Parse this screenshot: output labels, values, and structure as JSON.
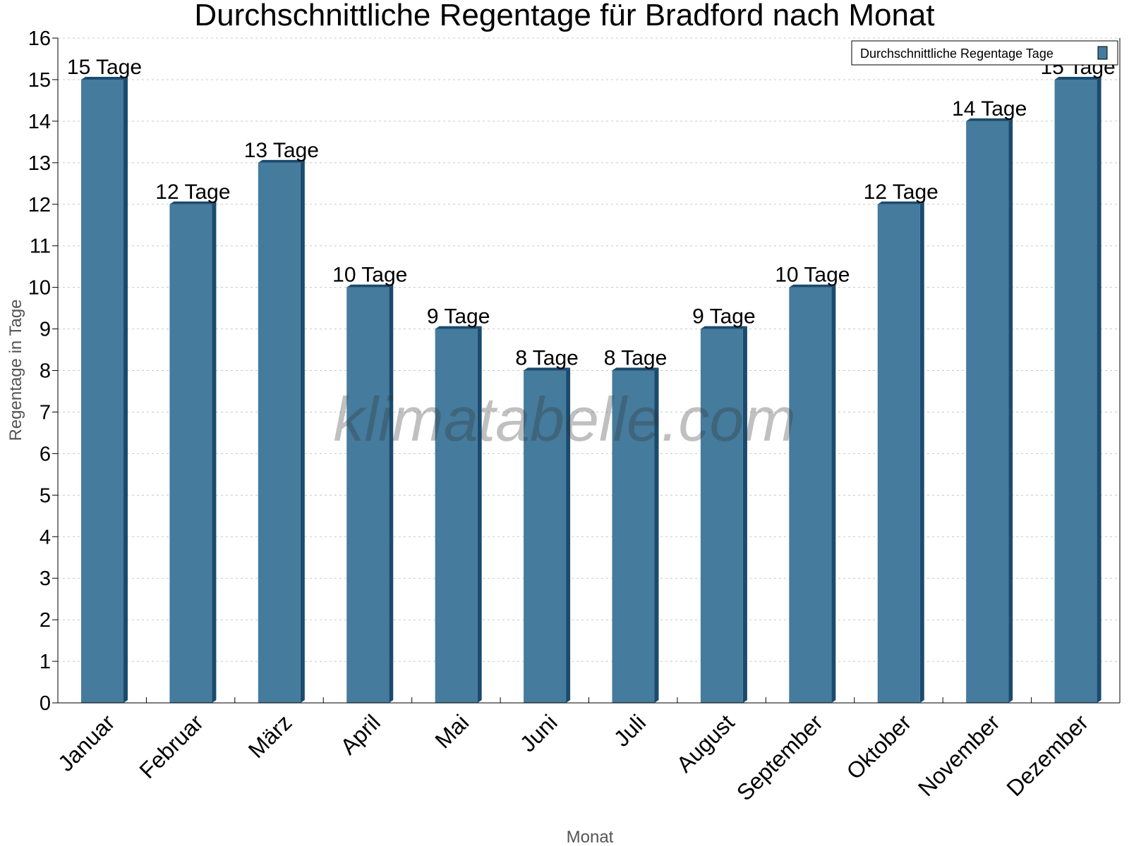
{
  "chart_data": {
    "type": "bar",
    "title": "Durchschnittliche Regentage für Bradford nach Monat",
    "xlabel": "Monat",
    "ylabel": "Regentage in Tage",
    "ylim": [
      0,
      16
    ],
    "yticks": [
      "0",
      "1",
      "2",
      "3",
      "4",
      "5",
      "6",
      "7",
      "8",
      "9",
      "10",
      "11",
      "12",
      "13",
      "14",
      "15",
      "16"
    ],
    "categories": [
      "Januar",
      "Februar",
      "März",
      "April",
      "Mai",
      "Juni",
      "Juli",
      "August",
      "September",
      "Oktober",
      "November",
      "Dezember"
    ],
    "series": [
      {
        "name": "Durchschnittliche Regentage Tage",
        "values": [
          15,
          12,
          13,
          10,
          9,
          8,
          8,
          9,
          10,
          12,
          14,
          15
        ],
        "color": "#457b9d",
        "side_color": "#1a4b6e"
      }
    ],
    "data_labels": [
      "15 Tage",
      "12 Tage",
      "13 Tage",
      "10 Tage",
      "9 Tage",
      "8 Tage",
      "8 Tage",
      "9 Tage",
      "10 Tage",
      "12 Tage",
      "14 Tage",
      "15 Tage"
    ],
    "grid": true,
    "legend_position": "top-right",
    "watermark": "klimatabelle.com"
  }
}
